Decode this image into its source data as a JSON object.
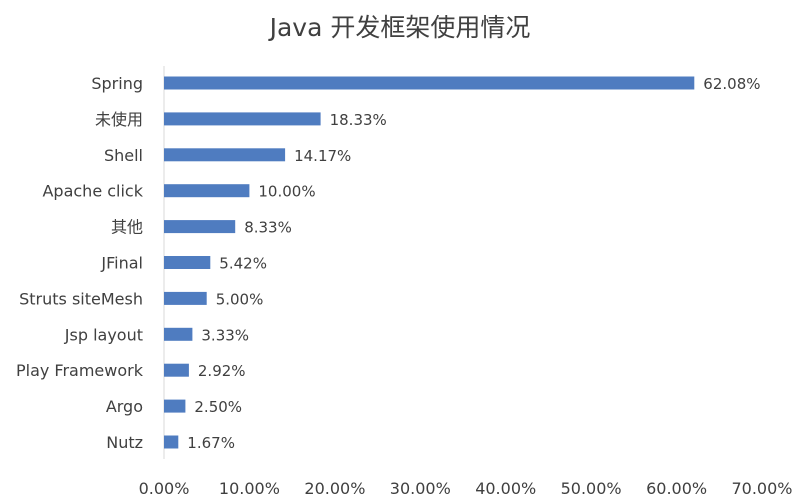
{
  "chart_data": {
    "type": "bar",
    "orientation": "horizontal",
    "title": "Java 开发框架使用情况",
    "categories": [
      "Spring",
      "未使用",
      "Shell",
      "Apache click",
      "其他",
      "JFinal",
      "Struts siteMesh",
      "Jsp layout",
      "Play Framework",
      "Argo",
      "Nutz"
    ],
    "values": [
      62.08,
      18.33,
      14.17,
      10.0,
      8.33,
      5.42,
      5.0,
      3.33,
      2.92,
      2.5,
      1.67
    ],
    "data_labels": [
      "62.08%",
      "18.33%",
      "14.17%",
      "10.00%",
      "8.33%",
      "5.42%",
      "5.00%",
      "3.33%",
      "2.92%",
      "2.50%",
      "1.67%"
    ],
    "xlim": [
      0,
      70
    ],
    "x_ticks": [
      0,
      10,
      20,
      30,
      40,
      50,
      60,
      70
    ],
    "x_tick_labels": [
      "0.00%",
      "10.00%",
      "20.00%",
      "30.00%",
      "40.00%",
      "50.00%",
      "60.00%",
      "70.00%"
    ],
    "xlabel": "",
    "ylabel": "",
    "grid": false,
    "legend": "none",
    "bar_color": "#4f7cc0",
    "text_color": "#404040"
  }
}
